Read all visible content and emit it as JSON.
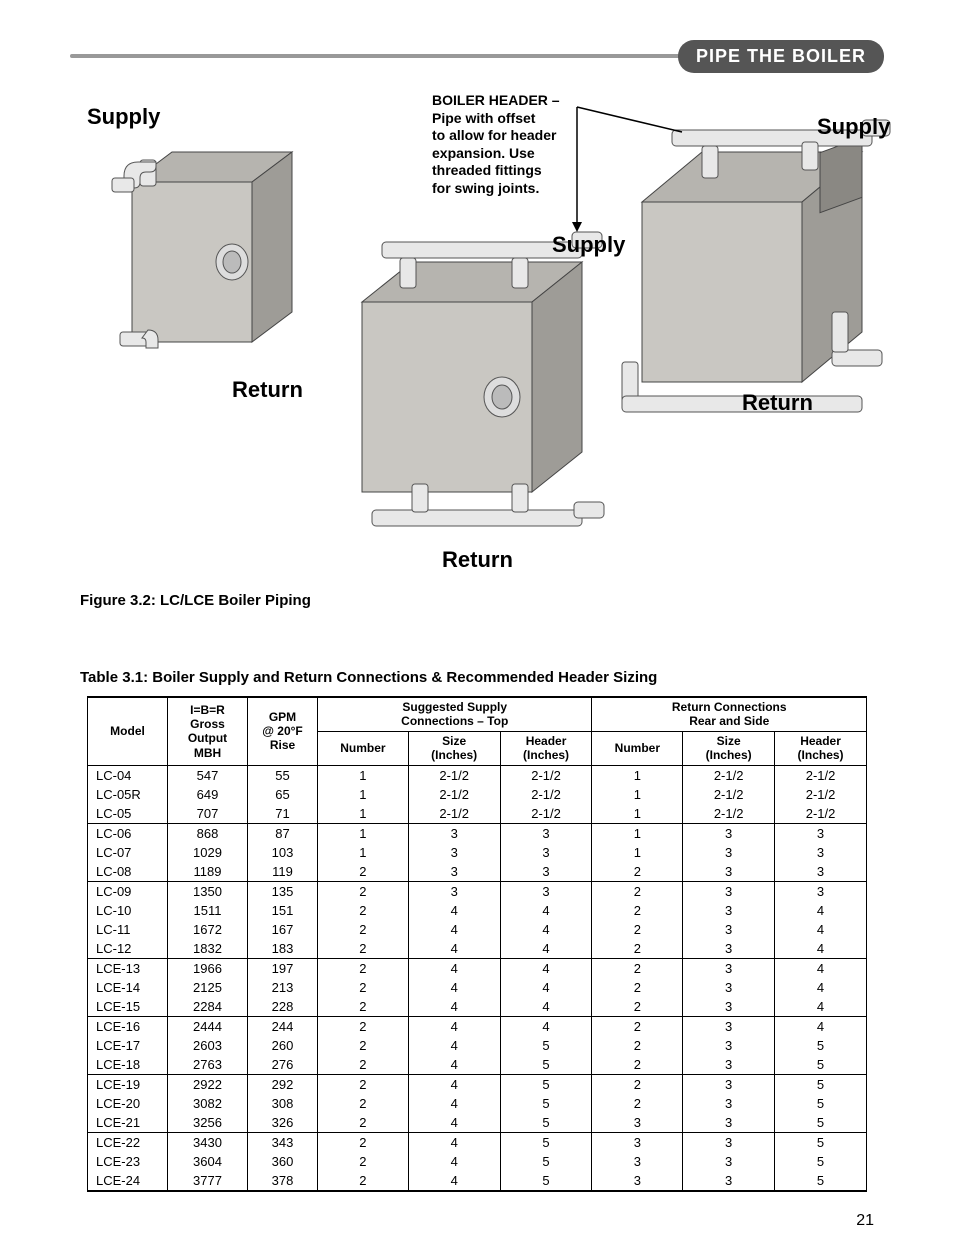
{
  "header": {
    "section_title": "PIPE THE BOILER"
  },
  "figure": {
    "caption": "Figure 3.2: LC/LCE Boiler Piping",
    "labels": {
      "supply1": "Supply",
      "return1": "Return",
      "supply2": "Supply",
      "return2": "Return",
      "supply3": "Supply",
      "return3": "Return"
    },
    "callout": "BOILER HEADER –\nPipe with offset\nto allow for header\nexpansion. Use\nthreaded fittings\nfor swing joints."
  },
  "table": {
    "caption": "Table 3.1:  Boiler Supply and Return Connections & Recommended Header Sizing",
    "columns": {
      "model": "Model",
      "output": "I=B=R\nGross\nOutput\nMBH",
      "gpm": "GPM\n@ 20°F\nRise",
      "supply_group": "Suggested Supply\nConnections – Top",
      "return_group": "Return Connections\nRear and Side",
      "number": "Number",
      "size": "Size\n(Inches)",
      "header": "Header\n(Inches)"
    },
    "groups": [
      [
        [
          "LC-04",
          "547",
          "55",
          "1",
          "2-1/2",
          "2-1/2",
          "1",
          "2-1/2",
          "2-1/2"
        ],
        [
          "LC-05R",
          "649",
          "65",
          "1",
          "2-1/2",
          "2-1/2",
          "1",
          "2-1/2",
          "2-1/2"
        ],
        [
          "LC-05",
          "707",
          "71",
          "1",
          "2-1/2",
          "2-1/2",
          "1",
          "2-1/2",
          "2-1/2"
        ]
      ],
      [
        [
          "LC-06",
          "868",
          "87",
          "1",
          "3",
          "3",
          "1",
          "3",
          "3"
        ],
        [
          "LC-07",
          "1029",
          "103",
          "1",
          "3",
          "3",
          "1",
          "3",
          "3"
        ],
        [
          "LC-08",
          "1189",
          "119",
          "2",
          "3",
          "3",
          "2",
          "3",
          "3"
        ]
      ],
      [
        [
          "LC-09",
          "1350",
          "135",
          "2",
          "3",
          "3",
          "2",
          "3",
          "3"
        ],
        [
          "LC-10",
          "1511",
          "151",
          "2",
          "4",
          "4",
          "2",
          "3",
          "4"
        ],
        [
          "LC-11",
          "1672",
          "167",
          "2",
          "4",
          "4",
          "2",
          "3",
          "4"
        ],
        [
          "LC-12",
          "1832",
          "183",
          "2",
          "4",
          "4",
          "2",
          "3",
          "4"
        ]
      ],
      [
        [
          "LCE-13",
          "1966",
          "197",
          "2",
          "4",
          "4",
          "2",
          "3",
          "4"
        ],
        [
          "LCE-14",
          "2125",
          "213",
          "2",
          "4",
          "4",
          "2",
          "3",
          "4"
        ],
        [
          "LCE-15",
          "2284",
          "228",
          "2",
          "4",
          "4",
          "2",
          "3",
          "4"
        ]
      ],
      [
        [
          "LCE-16",
          "2444",
          "244",
          "2",
          "4",
          "4",
          "2",
          "3",
          "4"
        ],
        [
          "LCE-17",
          "2603",
          "260",
          "2",
          "4",
          "5",
          "2",
          "3",
          "5"
        ],
        [
          "LCE-18",
          "2763",
          "276",
          "2",
          "4",
          "5",
          "2",
          "3",
          "5"
        ]
      ],
      [
        [
          "LCE-19",
          "2922",
          "292",
          "2",
          "4",
          "5",
          "2",
          "3",
          "5"
        ],
        [
          "LCE-20",
          "3082",
          "308",
          "2",
          "4",
          "5",
          "2",
          "3",
          "5"
        ],
        [
          "LCE-21",
          "3256",
          "326",
          "2",
          "4",
          "5",
          "3",
          "3",
          "5"
        ]
      ],
      [
        [
          "LCE-22",
          "3430",
          "343",
          "2",
          "4",
          "5",
          "3",
          "3",
          "5"
        ],
        [
          "LCE-23",
          "3604",
          "360",
          "2",
          "4",
          "5",
          "3",
          "3",
          "5"
        ],
        [
          "LCE-24",
          "3777",
          "378",
          "2",
          "4",
          "5",
          "3",
          "3",
          "5"
        ]
      ]
    ]
  },
  "page_number": "21"
}
